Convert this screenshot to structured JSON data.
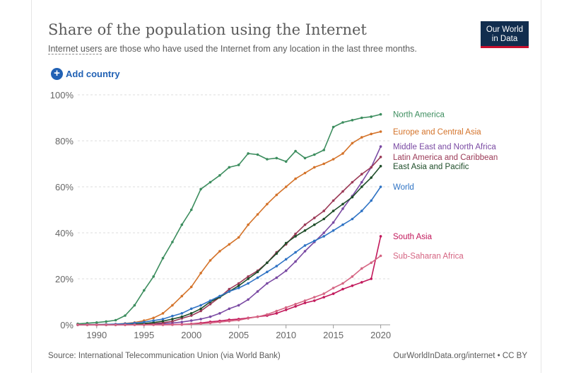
{
  "header": {
    "title": "Share of the population using the Internet",
    "subtitle_term": "Internet users",
    "subtitle_rest": " are those who have used the Internet from any location in the last three months.",
    "logo_line1": "Our World",
    "logo_line2": "in Data"
  },
  "controls": {
    "add_country_label": "Add country",
    "add_icon": "plus-circle-icon"
  },
  "footer": {
    "source": "Source: International Telecommunication Union (via World Bank)",
    "credit": "OurWorldInData.org/internet • CC BY"
  },
  "chart_data": {
    "type": "line",
    "title": "Share of the population using the Internet",
    "xlabel": "",
    "ylabel": "",
    "xlim": [
      1988,
      2021
    ],
    "ylim": [
      0,
      100
    ],
    "x_ticks": [
      1990,
      1995,
      2000,
      2005,
      2010,
      2015,
      2020
    ],
    "y_ticks": [
      0,
      20,
      40,
      60,
      80,
      100
    ],
    "y_tick_labels": [
      "0%",
      "20%",
      "40%",
      "60%",
      "80%",
      "100%"
    ],
    "grid": "horizontal-dashed",
    "x": [
      1988,
      1989,
      1990,
      1991,
      1992,
      1993,
      1994,
      1995,
      1996,
      1997,
      1998,
      1999,
      2000,
      2001,
      2002,
      2003,
      2004,
      2005,
      2006,
      2007,
      2008,
      2009,
      2010,
      2011,
      2012,
      2013,
      2014,
      2015,
      2016,
      2017,
      2018,
      2019,
      2020
    ],
    "series": [
      {
        "name": "North America",
        "color": "#3c8d5e",
        "values": [
          0.4,
          0.7,
          1.0,
          1.4,
          2.0,
          4.0,
          8.5,
          15.0,
          21.0,
          29.0,
          36.0,
          43.5,
          50.0,
          59.0,
          62.0,
          65.0,
          68.5,
          69.5,
          74.5,
          74.0,
          72.0,
          72.5,
          71.0,
          75.5,
          72.5,
          74.0,
          76.0,
          86.0,
          88.0,
          89.0,
          90.0,
          90.5,
          91.5
        ]
      },
      {
        "name": "Europe and Central Asia",
        "color": "#d4732a",
        "values": [
          0,
          0.1,
          0.1,
          0.2,
          0.3,
          0.6,
          1.0,
          1.8,
          3.0,
          5.0,
          8.5,
          12.5,
          16.5,
          22.5,
          28.0,
          32.0,
          35.0,
          38.0,
          43.5,
          48.0,
          52.5,
          56.5,
          60.0,
          63.5,
          66.0,
          68.5,
          70.0,
          72.0,
          74.5,
          79.0,
          81.5,
          83.0,
          84.0
        ]
      },
      {
        "name": "Middle East and North Africa",
        "color": "#7a4aa3",
        "values": [
          0,
          0,
          0,
          0,
          0,
          0,
          0.1,
          0.2,
          0.3,
          0.5,
          0.8,
          1.2,
          1.8,
          2.5,
          3.5,
          5.0,
          7.0,
          8.5,
          11.0,
          14.5,
          18.0,
          20.5,
          23.5,
          27.5,
          32.0,
          36.0,
          40.0,
          44.5,
          50.5,
          56.0,
          62.0,
          68.5,
          77.5
        ]
      },
      {
        "name": "Latin America and Caribbean",
        "color": "#9b3a57",
        "values": [
          0,
          0,
          0,
          0,
          0,
          0,
          0.1,
          0.2,
          0.5,
          0.9,
          1.5,
          2.8,
          4.0,
          6.0,
          9.0,
          12.0,
          15.5,
          18.0,
          21.0,
          23.5,
          27.0,
          31.5,
          35.0,
          39.5,
          43.5,
          46.5,
          49.5,
          54.0,
          58.0,
          62.0,
          65.5,
          68.5,
          73.0
        ]
      },
      {
        "name": "East Asia and Pacific",
        "color": "#1f4e2a",
        "values": [
          0,
          0,
          0,
          0,
          0,
          0.1,
          0.3,
          0.6,
          1.0,
          1.6,
          2.5,
          3.5,
          5.0,
          7.0,
          10.0,
          12.0,
          14.5,
          17.0,
          20.0,
          23.0,
          27.0,
          31.0,
          35.5,
          38.5,
          41.0,
          43.5,
          46.0,
          49.5,
          52.5,
          55.5,
          60.0,
          64.0,
          69.0
        ]
      },
      {
        "name": "World",
        "color": "#2f73c4",
        "values": [
          0,
          0.1,
          0.1,
          0.2,
          0.3,
          0.5,
          0.8,
          1.2,
          1.8,
          2.5,
          3.8,
          5.0,
          7.0,
          8.5,
          10.5,
          12.5,
          14.5,
          16.0,
          18.0,
          20.5,
          23.0,
          25.5,
          28.5,
          31.5,
          34.5,
          36.5,
          38.5,
          41.0,
          43.5,
          46.0,
          49.5,
          54.0,
          60.0
        ]
      },
      {
        "name": "South Asia",
        "color": "#c2185b",
        "values": [
          0,
          0,
          0,
          0,
          0,
          0,
          0,
          0,
          0,
          0,
          0.1,
          0.2,
          0.4,
          0.8,
          1.3,
          1.7,
          2.2,
          2.5,
          3.0,
          3.5,
          4.0,
          5.0,
          6.5,
          8.0,
          9.5,
          10.5,
          12.0,
          13.5,
          15.5,
          17.0,
          18.5,
          20.0,
          38.5
        ]
      },
      {
        "name": "Sub-Saharan Africa",
        "color": "#d56583",
        "values": [
          0,
          0,
          0,
          0,
          0,
          0,
          0,
          0,
          0,
          0,
          0,
          0.1,
          0.3,
          0.5,
          0.8,
          1.2,
          1.6,
          2.0,
          2.8,
          3.5,
          4.5,
          6.0,
          7.5,
          9.0,
          10.5,
          12.0,
          13.5,
          16.0,
          18.0,
          21.0,
          24.5,
          27.0,
          30.0
        ]
      }
    ]
  }
}
